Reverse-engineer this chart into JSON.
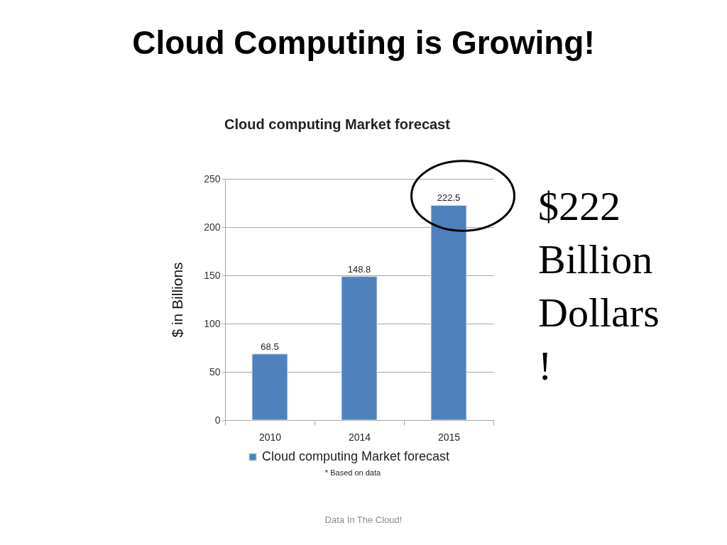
{
  "chart_data": {
    "type": "bar",
    "title": "Cloud Computing is Growing!",
    "subtitle": "Cloud computing Market forecast",
    "ylabel": "$ in Billions",
    "categories": [
      "2010",
      "2014",
      "2015"
    ],
    "series": [
      {
        "name": "Cloud computing Market forecast",
        "color": "#4f81bd",
        "values": [
          68.5,
          148.8,
          222.5
        ]
      }
    ],
    "ylim": [
      0,
      250
    ],
    "yticks": [
      0,
      50,
      100,
      150,
      200,
      250
    ],
    "grid": "y",
    "legend": "bottom",
    "data_labels": true,
    "annotations": [
      "* Based on data",
      "$222 Billion Dollars !",
      "Data In The Cloud!"
    ]
  }
}
